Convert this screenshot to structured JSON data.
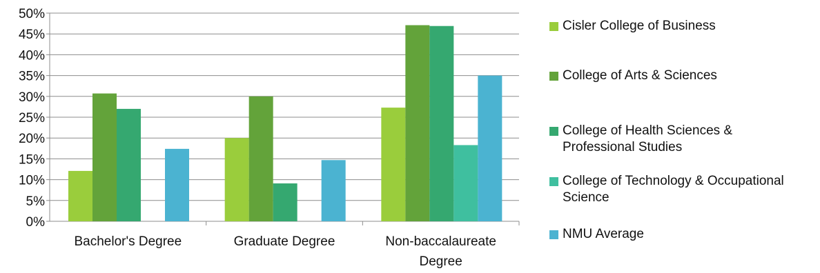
{
  "chart_data": {
    "type": "bar",
    "categories": [
      "Bachelor's Degree",
      "Graduate Degree",
      "Non-baccalaureate Degree"
    ],
    "series": [
      {
        "name": "Cisler College of Business",
        "color": "#9ACD3C",
        "values": [
          12.1,
          20.0,
          27.3
        ]
      },
      {
        "name": "College of Arts & Sciences",
        "color": "#63A33A",
        "values": [
          30.7,
          30.0,
          47.1
        ]
      },
      {
        "name": "College of Health Sciences & Professional Studies",
        "color": "#35A870",
        "values": [
          27.0,
          9.1,
          46.9
        ]
      },
      {
        "name": "College of Technology & Occupational Science",
        "color": "#3FBF9F",
        "values": [
          0,
          0,
          18.3
        ]
      },
      {
        "name": "NMU Average",
        "color": "#4BB3D1",
        "values": [
          17.4,
          14.7,
          35.0
        ]
      }
    ],
    "y_ticks": [
      "0%",
      "5%",
      "10%",
      "15%",
      "20%",
      "25%",
      "30%",
      "35%",
      "40%",
      "45%",
      "50%"
    ],
    "ylim": [
      0,
      50
    ],
    "gridlines": true,
    "legend_position": "right"
  }
}
